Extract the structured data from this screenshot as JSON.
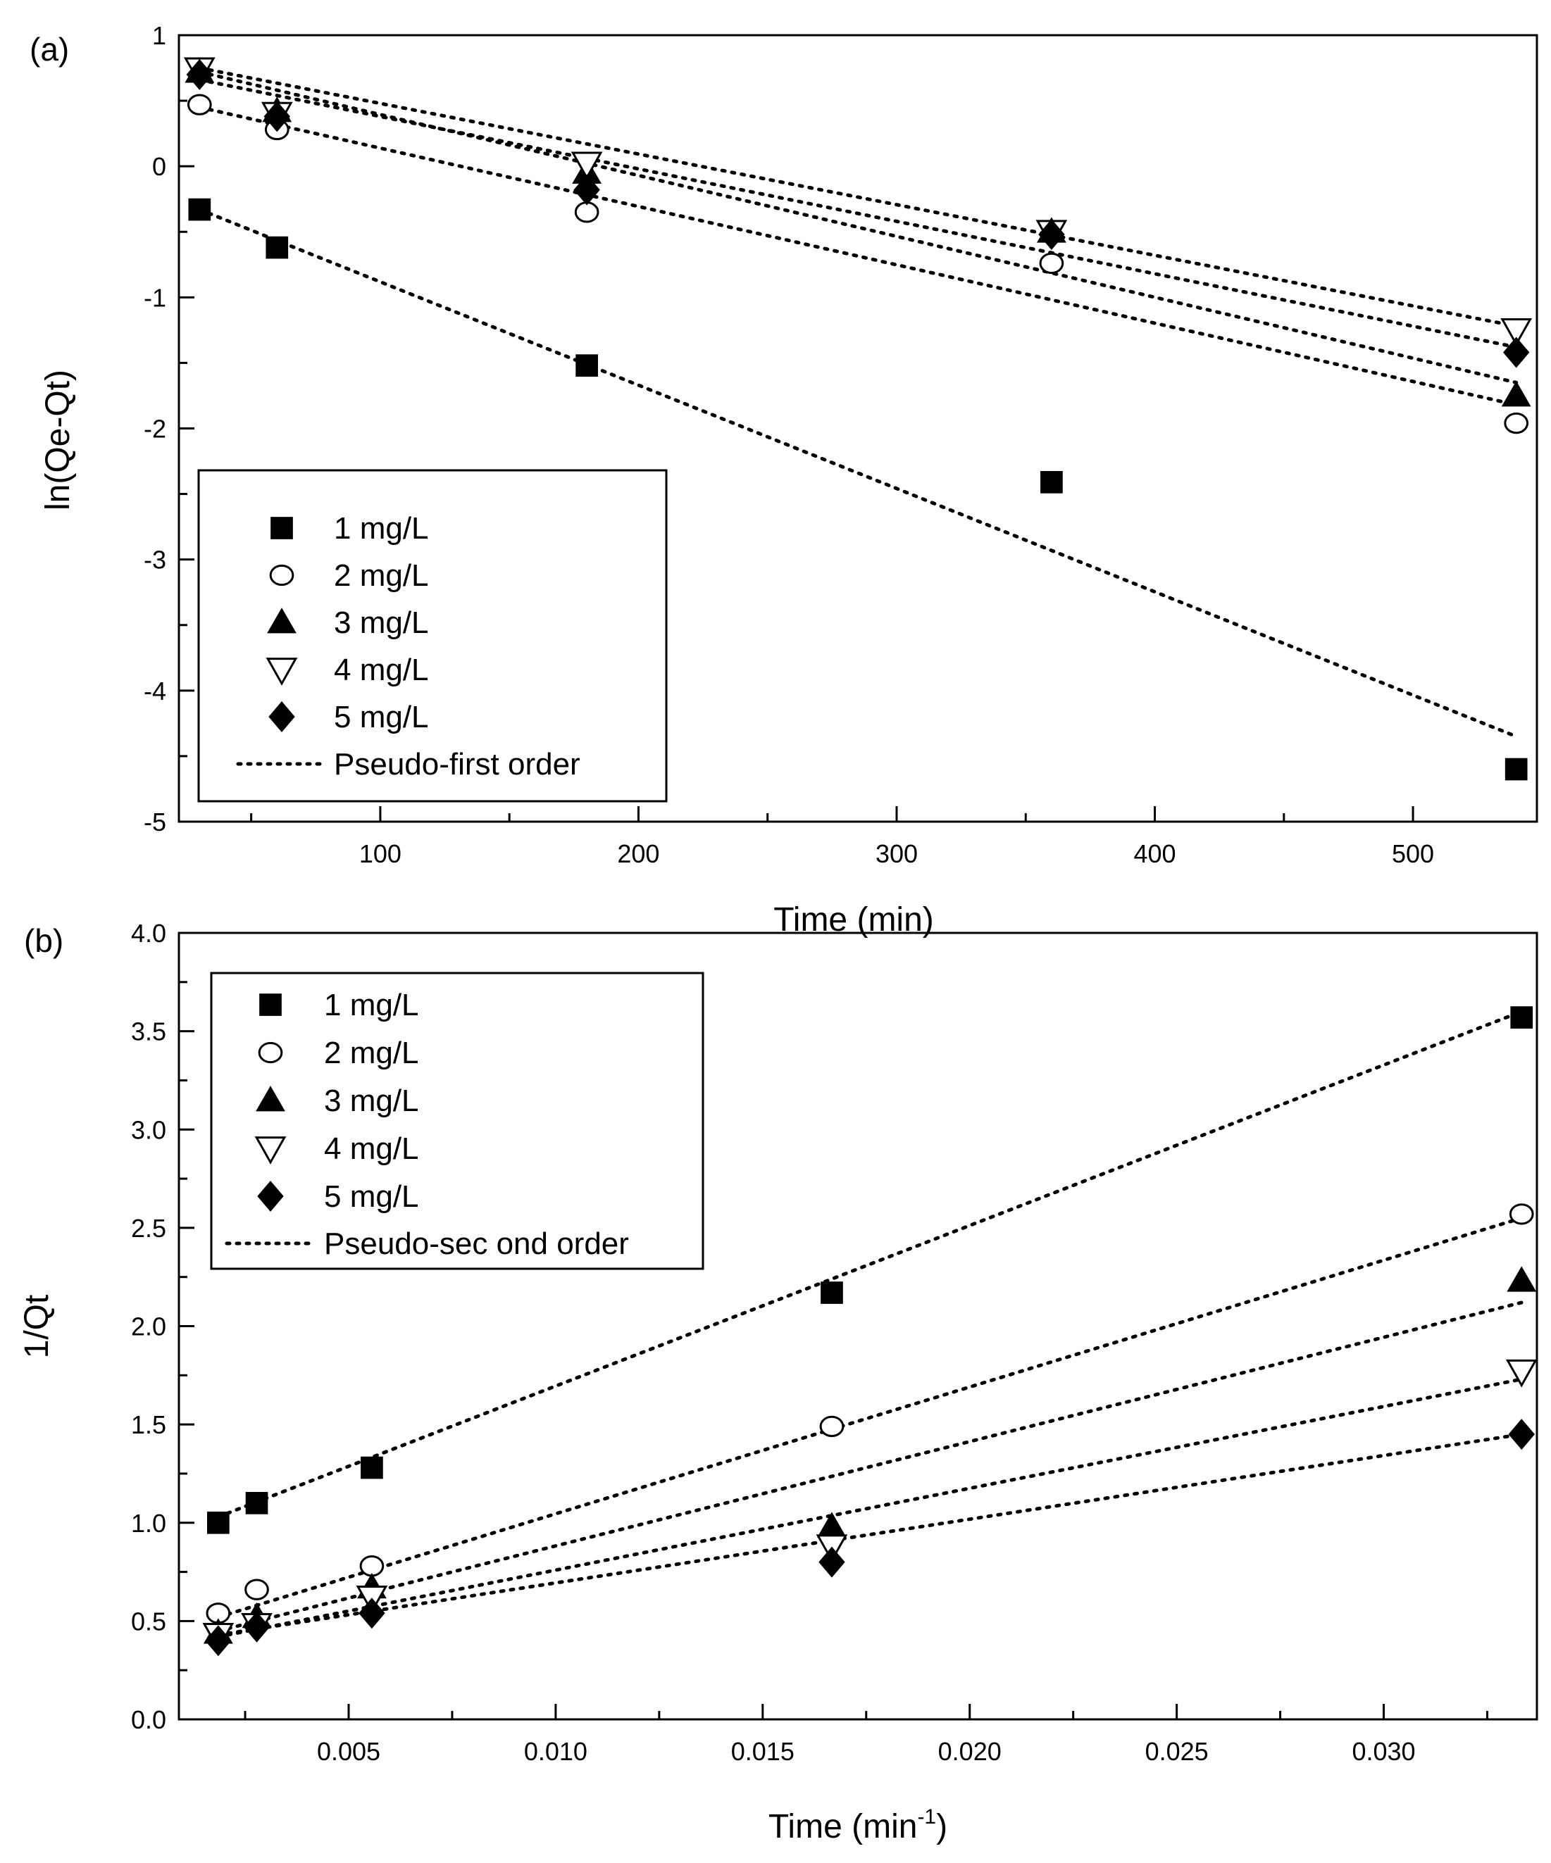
{
  "chart_data": [
    {
      "panel": "(a)",
      "type": "scatter",
      "xlabel": "Time (min)",
      "ylabel": "ln(Qe-Qt)",
      "xlim": [
        22,
        548
      ],
      "ylim": [
        -5,
        1
      ],
      "xticks": [
        100,
        200,
        300,
        400,
        500
      ],
      "yticks": [
        1,
        0,
        -1,
        -2,
        -3,
        -4,
        -5
      ],
      "legend_position": "bottom-left",
      "fit_label": "Pseudo-first order",
      "series": [
        {
          "name": "1 mg/L",
          "marker": "square-filled",
          "x": [
            30,
            60,
            180,
            360,
            540
          ],
          "y": [
            -0.33,
            -0.62,
            -1.52,
            -2.41,
            -4.6
          ],
          "fit": [
            [
              30,
              -0.33
            ],
            [
              540,
              -4.35
            ]
          ]
        },
        {
          "name": "2 mg/L",
          "marker": "circle-open",
          "x": [
            30,
            60,
            180,
            360,
            540
          ],
          "y": [
            0.47,
            0.28,
            -0.35,
            -0.74,
            -1.96
          ],
          "fit": [
            [
              30,
              0.45
            ],
            [
              540,
              -1.82
            ]
          ]
        },
        {
          "name": "3 mg/L",
          "marker": "triangle-up-filled",
          "x": [
            30,
            60,
            180,
            360,
            540
          ],
          "y": [
            0.72,
            0.42,
            -0.05,
            -0.5,
            -1.75
          ],
          "fit": [
            [
              30,
              0.72
            ],
            [
              540,
              -1.65
            ]
          ]
        },
        {
          "name": "4 mg/L",
          "marker": "triangle-down-open",
          "x": [
            30,
            60,
            180,
            360,
            540
          ],
          "y": [
            0.74,
            0.4,
            0.02,
            -0.5,
            -1.25
          ],
          "fit": [
            [
              30,
              0.75
            ],
            [
              540,
              -1.22
            ]
          ]
        },
        {
          "name": "5 mg/L",
          "marker": "diamond-filled",
          "x": [
            30,
            60,
            180,
            360,
            540
          ],
          "y": [
            0.7,
            0.38,
            -0.18,
            -0.52,
            -1.42
          ],
          "fit": [
            [
              30,
              0.66
            ],
            [
              540,
              -1.38
            ]
          ]
        }
      ]
    },
    {
      "panel": "(b)",
      "type": "scatter",
      "xlabel_main": "Time (min",
      "xlabel_sup": "-1",
      "xlabel_end": ")",
      "ylabel": "1/Qt",
      "xlim": [
        0.0009,
        0.0337
      ],
      "ylim": [
        0.0,
        4.0
      ],
      "xticks": [
        "0.005",
        "0.010",
        "0.015",
        "0.020",
        "0.025",
        "0.030"
      ],
      "yticks": [
        "0.0",
        "0.5",
        "1.0",
        "1.5",
        "2.0",
        "2.5",
        "3.0",
        "3.5",
        "4.0"
      ],
      "legend_position": "top-left",
      "fit_label": "Pseudo-sec ond order",
      "series": [
        {
          "name": "1 mg/L",
          "marker": "square-filled",
          "x": [
            0.00185,
            0.00278,
            0.00556,
            0.01667,
            0.03333
          ],
          "y": [
            1.0,
            1.1,
            1.28,
            2.17,
            3.57
          ],
          "fit": [
            [
              0.00185,
              1.03
            ],
            [
              0.03333,
              3.6
            ]
          ]
        },
        {
          "name": "2 mg/L",
          "marker": "circle-open",
          "x": [
            0.00185,
            0.00278,
            0.00556,
            0.01667,
            0.03333
          ],
          "y": [
            0.54,
            0.66,
            0.78,
            1.49,
            2.57
          ],
          "fit": [
            [
              0.00185,
              0.52
            ],
            [
              0.03333,
              2.55
            ]
          ]
        },
        {
          "name": "3 mg/L",
          "marker": "triangle-up-filled",
          "x": [
            0.00185,
            0.00278,
            0.00556,
            0.01667,
            0.03333
          ],
          "y": [
            0.44,
            0.52,
            0.67,
            0.98,
            2.23
          ],
          "fit": [
            [
              0.00185,
              0.45
            ],
            [
              0.03333,
              2.12
            ]
          ]
        },
        {
          "name": "4 mg/L",
          "marker": "triangle-down-open",
          "x": [
            0.00185,
            0.00278,
            0.00556,
            0.01667,
            0.03333
          ],
          "y": [
            0.43,
            0.48,
            0.62,
            0.88,
            1.77
          ],
          "fit": [
            [
              0.00185,
              0.42
            ],
            [
              0.03333,
              1.73
            ]
          ]
        },
        {
          "name": "5 mg/L",
          "marker": "diamond-filled",
          "x": [
            0.00185,
            0.00278,
            0.00556,
            0.01667,
            0.03333
          ],
          "y": [
            0.4,
            0.47,
            0.54,
            0.8,
            1.45
          ],
          "fit": [
            [
              0.00185,
              0.43
            ],
            [
              0.03333,
              1.45
            ]
          ]
        }
      ]
    }
  ]
}
